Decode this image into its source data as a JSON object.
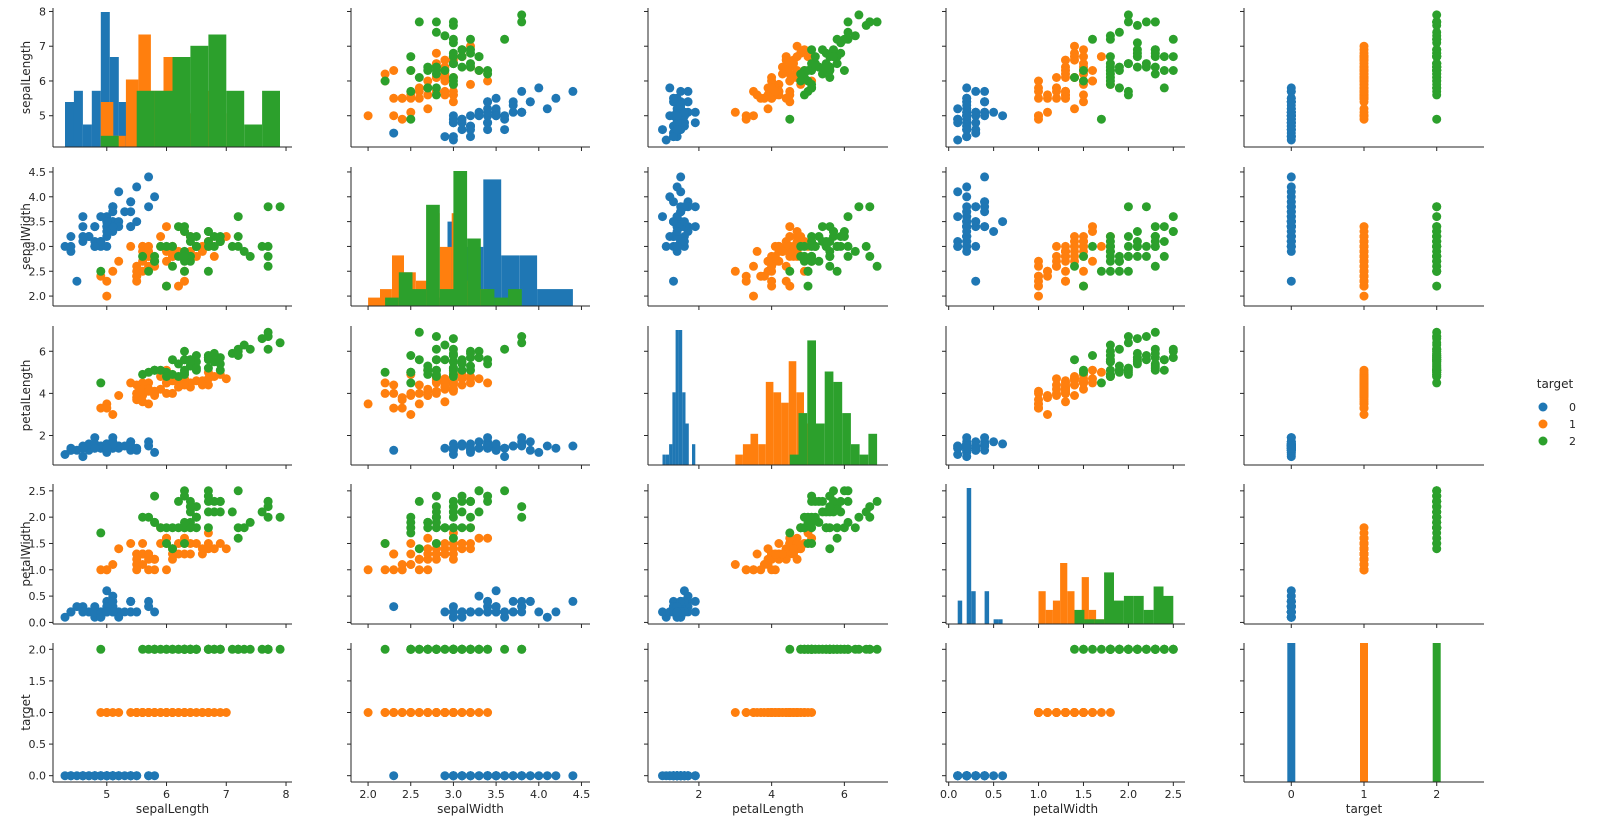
{
  "chart_data": {
    "type": "scatter",
    "variables": [
      "sepalLength",
      "sepalWidth",
      "petalLength",
      "petalWidth",
      "target"
    ],
    "hue": "target",
    "legend": {
      "title": "target",
      "placement": "right",
      "entries": [
        {
          "label": "0",
          "color": "#1f77b4"
        },
        {
          "label": "1",
          "color": "#ff7f0e"
        },
        {
          "label": "2",
          "color": "#2ca02c"
        }
      ]
    },
    "axes": {
      "sepalLength": {
        "label": "sepalLength",
        "lim": [
          4.1,
          8.1
        ],
        "ticks": [
          5,
          6,
          7,
          8
        ],
        "tick_labels": [
          "5",
          "6",
          "7",
          "8"
        ]
      },
      "sepalWidth": {
        "label": "sepalWidth",
        "lim": [
          1.8,
          4.6
        ],
        "ticks": [
          2.0,
          2.5,
          3.0,
          3.5,
          4.0,
          4.5
        ],
        "tick_labels": [
          "2.0",
          "2.5",
          "3.0",
          "3.5",
          "4.0",
          "4.5"
        ]
      },
      "petalLength": {
        "label": "petalLength",
        "lim": [
          0.6,
          7.2
        ],
        "ticks": [
          2,
          4,
          6
        ],
        "tick_labels": [
          "2",
          "4",
          "6"
        ]
      },
      "petalWidth": {
        "label": "petalWidth",
        "lim": [
          -0.03,
          2.63
        ],
        "ticks": [
          0.0,
          0.5,
          1.0,
          1.5,
          2.0,
          2.5
        ],
        "tick_labels": [
          "0.0",
          "0.5",
          "1.0",
          "1.5",
          "2.0",
          "2.5"
        ]
      },
      "target": {
        "label": "target",
        "lim": [
          -0.1,
          2.1
        ],
        "ticks": [
          0.0,
          0.5,
          1.0,
          1.5,
          2.0
        ],
        "tick_labels": [
          "0.0",
          "0.5",
          "1.0",
          "1.5",
          "2.0"
        ]
      }
    },
    "target_x_axis": {
      "lim": [
        -0.65,
        2.65
      ],
      "ticks": [
        0,
        1,
        2
      ],
      "tick_labels": [
        "0",
        "1",
        "2"
      ]
    },
    "grid": false,
    "series": [
      {
        "name": "0",
        "color": "#1f77b4",
        "points": [
          [
            5.1,
            3.5,
            1.4,
            0.2
          ],
          [
            4.9,
            3.0,
            1.4,
            0.2
          ],
          [
            4.7,
            3.2,
            1.3,
            0.2
          ],
          [
            4.6,
            3.1,
            1.5,
            0.2
          ],
          [
            5.0,
            3.6,
            1.4,
            0.2
          ],
          [
            5.4,
            3.9,
            1.7,
            0.4
          ],
          [
            4.6,
            3.4,
            1.4,
            0.3
          ],
          [
            5.0,
            3.4,
            1.5,
            0.2
          ],
          [
            4.4,
            2.9,
            1.4,
            0.2
          ],
          [
            4.9,
            3.1,
            1.5,
            0.1
          ],
          [
            5.4,
            3.7,
            1.5,
            0.2
          ],
          [
            4.8,
            3.4,
            1.6,
            0.2
          ],
          [
            4.8,
            3.0,
            1.4,
            0.1
          ],
          [
            4.3,
            3.0,
            1.1,
            0.1
          ],
          [
            5.8,
            4.0,
            1.2,
            0.2
          ],
          [
            5.7,
            4.4,
            1.5,
            0.4
          ],
          [
            5.4,
            3.9,
            1.3,
            0.4
          ],
          [
            5.1,
            3.5,
            1.4,
            0.3
          ],
          [
            5.7,
            3.8,
            1.7,
            0.3
          ],
          [
            5.1,
            3.8,
            1.5,
            0.3
          ],
          [
            5.4,
            3.4,
            1.7,
            0.2
          ],
          [
            5.1,
            3.7,
            1.5,
            0.4
          ],
          [
            4.6,
            3.6,
            1.0,
            0.2
          ],
          [
            5.1,
            3.3,
            1.7,
            0.5
          ],
          [
            4.8,
            3.4,
            1.9,
            0.2
          ],
          [
            5.0,
            3.0,
            1.6,
            0.2
          ],
          [
            5.0,
            3.4,
            1.6,
            0.4
          ],
          [
            5.2,
            3.5,
            1.5,
            0.2
          ],
          [
            5.2,
            3.4,
            1.4,
            0.2
          ],
          [
            4.7,
            3.2,
            1.6,
            0.2
          ],
          [
            4.8,
            3.1,
            1.6,
            0.2
          ],
          [
            5.4,
            3.4,
            1.5,
            0.4
          ],
          [
            5.2,
            4.1,
            1.5,
            0.1
          ],
          [
            5.5,
            4.2,
            1.4,
            0.2
          ],
          [
            4.9,
            3.1,
            1.5,
            0.2
          ],
          [
            5.0,
            3.2,
            1.2,
            0.2
          ],
          [
            5.5,
            3.5,
            1.3,
            0.2
          ],
          [
            4.9,
            3.6,
            1.4,
            0.1
          ],
          [
            4.4,
            3.0,
            1.3,
            0.2
          ],
          [
            5.1,
            3.4,
            1.5,
            0.2
          ],
          [
            5.0,
            3.5,
            1.3,
            0.3
          ],
          [
            4.5,
            2.3,
            1.3,
            0.3
          ],
          [
            4.4,
            3.2,
            1.3,
            0.2
          ],
          [
            5.0,
            3.5,
            1.6,
            0.6
          ],
          [
            5.1,
            3.8,
            1.9,
            0.4
          ],
          [
            4.8,
            3.0,
            1.4,
            0.3
          ],
          [
            5.1,
            3.8,
            1.6,
            0.2
          ],
          [
            4.6,
            3.2,
            1.4,
            0.2
          ],
          [
            5.3,
            3.7,
            1.5,
            0.2
          ],
          [
            5.0,
            3.3,
            1.4,
            0.2
          ]
        ]
      },
      {
        "name": "1",
        "color": "#ff7f0e",
        "points": [
          [
            7.0,
            3.2,
            4.7,
            1.4
          ],
          [
            6.4,
            3.2,
            4.5,
            1.5
          ],
          [
            6.9,
            3.1,
            4.9,
            1.5
          ],
          [
            5.5,
            2.3,
            4.0,
            1.3
          ],
          [
            6.5,
            2.8,
            4.6,
            1.5
          ],
          [
            5.7,
            2.8,
            4.5,
            1.3
          ],
          [
            6.3,
            3.3,
            4.7,
            1.6
          ],
          [
            4.9,
            2.4,
            3.3,
            1.0
          ],
          [
            6.6,
            2.9,
            4.6,
            1.3
          ],
          [
            5.2,
            2.7,
            3.9,
            1.4
          ],
          [
            5.0,
            2.0,
            3.5,
            1.0
          ],
          [
            5.9,
            3.0,
            4.2,
            1.5
          ],
          [
            6.0,
            2.2,
            4.0,
            1.0
          ],
          [
            6.1,
            2.9,
            4.7,
            1.4
          ],
          [
            5.6,
            2.9,
            3.6,
            1.3
          ],
          [
            6.7,
            3.1,
            4.4,
            1.4
          ],
          [
            5.6,
            3.0,
            4.5,
            1.5
          ],
          [
            5.8,
            2.7,
            4.1,
            1.0
          ],
          [
            6.2,
            2.2,
            4.5,
            1.5
          ],
          [
            5.6,
            2.5,
            3.9,
            1.1
          ],
          [
            5.9,
            3.2,
            4.8,
            1.8
          ],
          [
            6.1,
            2.8,
            4.0,
            1.3
          ],
          [
            6.3,
            2.5,
            4.9,
            1.5
          ],
          [
            6.1,
            2.8,
            4.7,
            1.2
          ],
          [
            6.4,
            2.9,
            4.3,
            1.3
          ],
          [
            6.6,
            3.0,
            4.4,
            1.4
          ],
          [
            6.8,
            2.8,
            4.8,
            1.4
          ],
          [
            6.7,
            3.0,
            5.0,
            1.7
          ],
          [
            6.0,
            2.9,
            4.5,
            1.5
          ],
          [
            5.7,
            2.6,
            3.5,
            1.0
          ],
          [
            5.5,
            2.4,
            3.8,
            1.1
          ],
          [
            5.5,
            2.4,
            3.7,
            1.0
          ],
          [
            5.8,
            2.7,
            3.9,
            1.2
          ],
          [
            6.0,
            2.7,
            5.1,
            1.6
          ],
          [
            5.4,
            3.0,
            4.5,
            1.5
          ],
          [
            6.0,
            3.4,
            4.5,
            1.6
          ],
          [
            6.7,
            3.1,
            4.7,
            1.5
          ],
          [
            6.3,
            2.3,
            4.4,
            1.3
          ],
          [
            5.6,
            3.0,
            4.1,
            1.3
          ],
          [
            5.5,
            2.5,
            4.0,
            1.3
          ],
          [
            5.5,
            2.6,
            4.4,
            1.2
          ],
          [
            6.1,
            3.0,
            4.6,
            1.4
          ],
          [
            5.8,
            2.6,
            4.0,
            1.2
          ],
          [
            5.0,
            2.3,
            3.3,
            1.0
          ],
          [
            5.6,
            2.7,
            4.2,
            1.3
          ],
          [
            5.7,
            3.0,
            4.2,
            1.2
          ],
          [
            5.7,
            2.9,
            4.2,
            1.3
          ],
          [
            6.2,
            2.9,
            4.3,
            1.3
          ],
          [
            5.1,
            2.5,
            3.0,
            1.1
          ],
          [
            5.7,
            2.8,
            4.1,
            1.3
          ]
        ]
      },
      {
        "name": "2",
        "color": "#2ca02c",
        "points": [
          [
            6.3,
            3.3,
            6.0,
            2.5
          ],
          [
            5.8,
            2.7,
            5.1,
            1.9
          ],
          [
            7.1,
            3.0,
            5.9,
            2.1
          ],
          [
            6.3,
            2.9,
            5.6,
            1.8
          ],
          [
            6.5,
            3.0,
            5.8,
            2.2
          ],
          [
            7.6,
            3.0,
            6.6,
            2.1
          ],
          [
            4.9,
            2.5,
            4.5,
            1.7
          ],
          [
            7.3,
            2.9,
            6.3,
            1.8
          ],
          [
            6.7,
            2.5,
            5.8,
            1.8
          ],
          [
            7.2,
            3.6,
            6.1,
            2.5
          ],
          [
            6.5,
            3.2,
            5.1,
            2.0
          ],
          [
            6.4,
            2.7,
            5.3,
            1.9
          ],
          [
            6.8,
            3.0,
            5.5,
            2.1
          ],
          [
            5.7,
            2.5,
            5.0,
            2.0
          ],
          [
            5.8,
            2.8,
            5.1,
            2.4
          ],
          [
            6.4,
            3.2,
            5.3,
            2.3
          ],
          [
            6.5,
            3.0,
            5.5,
            1.8
          ],
          [
            7.7,
            3.8,
            6.7,
            2.2
          ],
          [
            7.7,
            2.6,
            6.9,
            2.3
          ],
          [
            6.0,
            2.2,
            5.0,
            1.5
          ],
          [
            6.9,
            3.2,
            5.7,
            2.3
          ],
          [
            5.6,
            2.8,
            4.9,
            2.0
          ],
          [
            7.7,
            2.8,
            6.7,
            2.0
          ],
          [
            6.3,
            2.7,
            4.9,
            1.8
          ],
          [
            6.7,
            3.3,
            5.7,
            2.1
          ],
          [
            7.2,
            3.2,
            6.0,
            1.8
          ],
          [
            6.2,
            2.8,
            4.8,
            1.8
          ],
          [
            6.1,
            3.0,
            4.9,
            1.8
          ],
          [
            6.4,
            2.8,
            5.6,
            2.1
          ],
          [
            7.2,
            3.0,
            5.8,
            1.6
          ],
          [
            7.4,
            2.8,
            6.1,
            1.9
          ],
          [
            7.9,
            3.8,
            6.4,
            2.0
          ],
          [
            6.4,
            2.8,
            5.6,
            2.2
          ],
          [
            6.3,
            2.8,
            5.1,
            1.5
          ],
          [
            6.1,
            2.6,
            5.6,
            1.4
          ],
          [
            7.7,
            3.0,
            6.1,
            2.3
          ],
          [
            6.3,
            3.4,
            5.6,
            2.4
          ],
          [
            6.4,
            3.1,
            5.5,
            1.8
          ],
          [
            6.0,
            3.0,
            4.8,
            1.8
          ],
          [
            6.9,
            3.1,
            5.4,
            2.1
          ],
          [
            6.7,
            3.1,
            5.6,
            2.4
          ],
          [
            6.9,
            3.1,
            5.1,
            2.3
          ],
          [
            5.8,
            2.7,
            5.1,
            1.9
          ],
          [
            6.8,
            3.2,
            5.9,
            2.3
          ],
          [
            6.7,
            3.3,
            5.7,
            2.5
          ],
          [
            6.7,
            3.0,
            5.2,
            2.3
          ],
          [
            6.3,
            2.5,
            5.0,
            1.9
          ],
          [
            6.5,
            3.0,
            5.2,
            2.0
          ],
          [
            6.2,
            3.4,
            5.4,
            2.3
          ],
          [
            5.9,
            3.0,
            5.1,
            1.8
          ]
        ]
      }
    ]
  }
}
